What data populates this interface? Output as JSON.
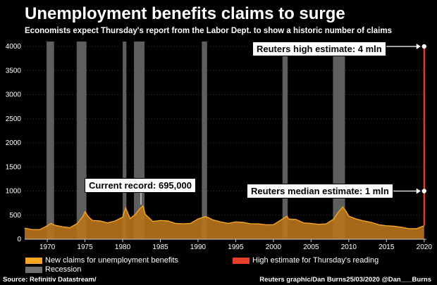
{
  "title": "Unemployment benefits claims to surge",
  "subtitle": "Economists expect Thursday's report from the Labor Dept. to show a historic number of claims",
  "annotations": {
    "record": "Current record: 695,000",
    "high": "Reuters high estimate: 4 mln",
    "median": "Reuters median estimate: 1 mln"
  },
  "legend": {
    "claims": "New claims for unemployment benefits",
    "high_estimate": "High estimate for Thursday's reading",
    "recession": "Recession"
  },
  "source": "Source: Refinitiv Datastream/",
  "credit": "Reuters graphic/Dan Burns25/03/2020 @Dan___Burns",
  "colors": {
    "claims": "#f5a623",
    "claims_fill": "#b8741c",
    "high_estimate": "#e8402a",
    "recession": "#6e6e6e",
    "background": "#000000"
  },
  "chart_data": {
    "type": "area",
    "xlabel": "",
    "ylabel": "",
    "xlim": [
      1967,
      2020.3
    ],
    "ylim": [
      0,
      4000
    ],
    "xticks": [
      1970,
      1975,
      1980,
      1985,
      1990,
      1995,
      2000,
      2005,
      2010,
      2015,
      2020
    ],
    "yticks": [
      0,
      500,
      1000,
      1500,
      2000,
      2500,
      3000,
      3500,
      4000
    ],
    "series": [
      {
        "name": "New claims for unemployment benefits",
        "x": [
          1967,
          1968,
          1969,
          1969.9,
          1970.5,
          1971,
          1972,
          1973,
          1974,
          1974.7,
          1975,
          1975.5,
          1976,
          1977,
          1978,
          1979,
          1980,
          1980.4,
          1980.8,
          1981,
          1981.7,
          1982.2,
          1982.7,
          1983,
          1984,
          1985,
          1986,
          1987,
          1988,
          1989,
          1990,
          1991,
          1991.5,
          1992,
          1993,
          1994,
          1995,
          1996,
          1997,
          1998,
          1999,
          2000,
          2001,
          2001.8,
          2002,
          2003,
          2004,
          2005,
          2006,
          2007,
          2008,
          2008.6,
          2009.2,
          2009.6,
          2010,
          2011,
          2012,
          2013,
          2014,
          2015,
          2016,
          2017,
          2018,
          2019,
          2020
        ],
        "y": [
          230,
          200,
          200,
          270,
          330,
          290,
          260,
          240,
          330,
          470,
          570,
          460,
          390,
          380,
          340,
          380,
          460,
          650,
          500,
          430,
          520,
          620,
          690,
          520,
          370,
          390,
          380,
          330,
          320,
          330,
          420,
          470,
          440,
          400,
          360,
          330,
          360,
          350,
          320,
          320,
          300,
          300,
          400,
          480,
          420,
          410,
          340,
          330,
          310,
          320,
          420,
          560,
          670,
          590,
          480,
          420,
          380,
          350,
          300,
          280,
          270,
          250,
          220,
          220,
          280
        ]
      },
      {
        "name": "High estimate for Thursday's reading",
        "x": [
          2020,
          2020
        ],
        "y": [
          280,
          4000
        ]
      }
    ],
    "points": [
      {
        "label": "Reuters high estimate: 4 mln",
        "x": 2020,
        "y": 4000
      },
      {
        "label": "Reuters median estimate: 1 mln",
        "x": 2020,
        "y": 1000
      }
    ],
    "recessions": [
      [
        1969.9,
        1970.9
      ],
      [
        1973.9,
        1975.2
      ],
      [
        1980.0,
        1980.5
      ],
      [
        1981.5,
        1982.9
      ],
      [
        1990.5,
        1991.2
      ],
      [
        2001.2,
        2001.9
      ],
      [
        2007.9,
        2009.5
      ]
    ]
  }
}
